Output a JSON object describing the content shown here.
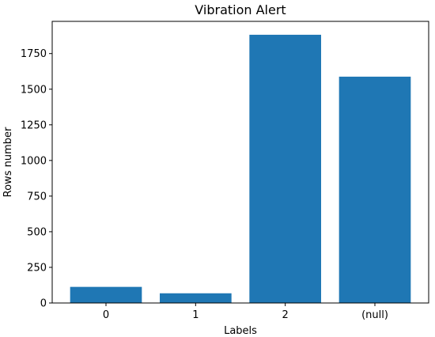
{
  "chart_data": {
    "type": "bar",
    "title": "Vibration Alert",
    "xlabel": "Labels",
    "ylabel": "Rows number",
    "categories": [
      "0",
      "1",
      "2",
      "(null)"
    ],
    "values": [
      113,
      68,
      1882,
      1588
    ],
    "ylim": [
      0,
      1976
    ],
    "yticks": [
      0,
      250,
      500,
      750,
      1000,
      1250,
      1500,
      1750
    ],
    "grid": false,
    "bar_color": "#1f77b4"
  }
}
